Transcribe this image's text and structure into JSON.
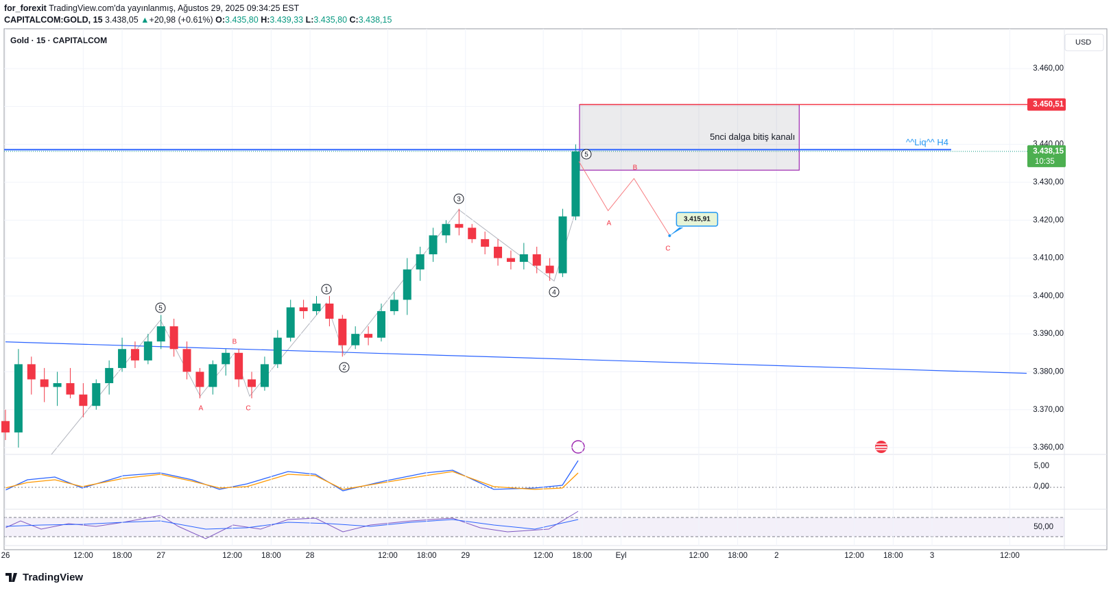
{
  "header": {
    "author": "for_forexit",
    "published": "TradingView.com'da yayınlanmış, Ağustos 29, 2025 09:34:25 EST",
    "symbol": "CAPITALCOM:GOLD, 15",
    "price": "3.438,05",
    "arrow": "▲",
    "change": "+20,98 (+0.61%)",
    "o_key": "O:",
    "o": "3.435,80",
    "h_key": "H:",
    "h": "3.439,33",
    "l_key": "L:",
    "l": "3.435,80",
    "c_key": "C:",
    "c": "3.438,15"
  },
  "legend": "Gold · 15 · CAPITALCOM",
  "currency": "USD",
  "footer": "TradingView",
  "indicators": {
    "macd_ticks": [
      "5,00",
      "0,00"
    ],
    "rsi_tick": "50,00"
  },
  "chart_data": {
    "type": "candlestick",
    "up_color": "#089981",
    "down_color": "#f23645",
    "xlim": [
      0,
      157.6
    ],
    "ylim": [
      3358.2,
      3470.5
    ],
    "xticks": [
      {
        "value": 0,
        "label": "26"
      },
      {
        "value": 12,
        "label": "12:00"
      },
      {
        "value": 18,
        "label": "18:00"
      },
      {
        "value": 24,
        "label": "27"
      },
      {
        "value": 35,
        "label": "12:00"
      },
      {
        "value": 41,
        "label": "18:00"
      },
      {
        "value": 47,
        "label": "28"
      },
      {
        "value": 59,
        "label": "12:00"
      },
      {
        "value": 65,
        "label": "18:00"
      },
      {
        "value": 71,
        "label": "29"
      },
      {
        "value": 83,
        "label": "12:00"
      },
      {
        "value": 89,
        "label": "18:00"
      },
      {
        "value": 95,
        "label": "Eyl"
      },
      {
        "value": 107,
        "label": "12:00"
      },
      {
        "value": 113,
        "label": "18:00"
      },
      {
        "value": 119,
        "label": "2"
      },
      {
        "value": 131,
        "label": "12:00"
      },
      {
        "value": 137,
        "label": "18:00"
      },
      {
        "value": 143,
        "label": "3"
      },
      {
        "value": 155,
        "label": "12:00"
      }
    ],
    "yticks": [
      {
        "value": 3360,
        "label": "3.360,00"
      },
      {
        "value": 3370,
        "label": "3.370,00"
      },
      {
        "value": 3380,
        "label": "3.380,00"
      },
      {
        "value": 3390,
        "label": "3.390,00"
      },
      {
        "value": 3400,
        "label": "3.400,00"
      },
      {
        "value": 3410,
        "label": "3.410,00"
      },
      {
        "value": 3420,
        "label": "3.420,00"
      },
      {
        "value": 3430,
        "label": "3.430,00"
      },
      {
        "value": 3440,
        "label": "3.440,00"
      },
      {
        "value": 3450,
        "label": "3.450,00"
      },
      {
        "value": 3460,
        "label": "3.460,00"
      }
    ],
    "candles": [
      {
        "x": 0,
        "open": 3367,
        "high": 3370,
        "low": 3362,
        "close": 3364
      },
      {
        "x": 2,
        "open": 3364,
        "high": 3386,
        "low": 3360,
        "close": 3382
      },
      {
        "x": 4,
        "open": 3382,
        "high": 3384,
        "low": 3374,
        "close": 3378
      },
      {
        "x": 6,
        "open": 3378,
        "high": 3381,
        "low": 3372,
        "close": 3376
      },
      {
        "x": 8,
        "open": 3376,
        "high": 3380,
        "low": 3371,
        "close": 3377
      },
      {
        "x": 10,
        "open": 3377,
        "high": 3381,
        "low": 3373,
        "close": 3374
      },
      {
        "x": 12,
        "open": 3374,
        "high": 3377,
        "low": 3368,
        "close": 3371
      },
      {
        "x": 14,
        "open": 3371,
        "high": 3378,
        "low": 3370,
        "close": 3377
      },
      {
        "x": 16,
        "open": 3377,
        "high": 3383,
        "low": 3374,
        "close": 3381
      },
      {
        "x": 18,
        "open": 3381,
        "high": 3389,
        "low": 3380,
        "close": 3386
      },
      {
        "x": 20,
        "open": 3386,
        "high": 3388,
        "low": 3381,
        "close": 3383
      },
      {
        "x": 22,
        "open": 3383,
        "high": 3390,
        "low": 3382,
        "close": 3388
      },
      {
        "x": 24,
        "open": 3388,
        "high": 3395,
        "low": 3386,
        "close": 3392
      },
      {
        "x": 26,
        "open": 3392,
        "high": 3394,
        "low": 3384,
        "close": 3386
      },
      {
        "x": 28,
        "open": 3386,
        "high": 3388,
        "low": 3378,
        "close": 3380
      },
      {
        "x": 30,
        "open": 3380,
        "high": 3381,
        "low": 3373,
        "close": 3376
      },
      {
        "x": 32,
        "open": 3376,
        "high": 3383,
        "low": 3374,
        "close": 3382
      },
      {
        "x": 34,
        "open": 3382,
        "high": 3386,
        "low": 3379,
        "close": 3385
      },
      {
        "x": 36,
        "open": 3385,
        "high": 3386,
        "low": 3376,
        "close": 3378
      },
      {
        "x": 38,
        "open": 3378,
        "high": 3380,
        "low": 3373,
        "close": 3376
      },
      {
        "x": 40,
        "open": 3376,
        "high": 3384,
        "low": 3375,
        "close": 3382
      },
      {
        "x": 42,
        "open": 3382,
        "high": 3391,
        "low": 3381,
        "close": 3389
      },
      {
        "x": 44,
        "open": 3389,
        "high": 3399,
        "low": 3388,
        "close": 3397
      },
      {
        "x": 46,
        "open": 3397,
        "high": 3399,
        "low": 3394,
        "close": 3396
      },
      {
        "x": 48,
        "open": 3396,
        "high": 3400,
        "low": 3395,
        "close": 3398
      },
      {
        "x": 50,
        "open": 3398,
        "high": 3400,
        "low": 3392,
        "close": 3394
      },
      {
        "x": 52,
        "open": 3394,
        "high": 3395,
        "low": 3384,
        "close": 3387
      },
      {
        "x": 54,
        "open": 3387,
        "high": 3392,
        "low": 3386,
        "close": 3390
      },
      {
        "x": 56,
        "open": 3390,
        "high": 3392,
        "low": 3387,
        "close": 3389
      },
      {
        "x": 58,
        "open": 3389,
        "high": 3398,
        "low": 3388,
        "close": 3396
      },
      {
        "x": 60,
        "open": 3396,
        "high": 3401,
        "low": 3395,
        "close": 3399
      },
      {
        "x": 62,
        "open": 3399,
        "high": 3410,
        "low": 3395,
        "close": 3407
      },
      {
        "x": 64,
        "open": 3407,
        "high": 3413,
        "low": 3404,
        "close": 3411
      },
      {
        "x": 66,
        "open": 3411,
        "high": 3418,
        "low": 3409,
        "close": 3416
      },
      {
        "x": 68,
        "open": 3416,
        "high": 3420,
        "low": 3414,
        "close": 3419
      },
      {
        "x": 70,
        "open": 3419,
        "high": 3423,
        "low": 3416,
        "close": 3418
      },
      {
        "x": 72,
        "open": 3418,
        "high": 3419,
        "low": 3414,
        "close": 3415
      },
      {
        "x": 74,
        "open": 3415,
        "high": 3417,
        "low": 3411,
        "close": 3413
      },
      {
        "x": 76,
        "open": 3413,
        "high": 3415,
        "low": 3408,
        "close": 3410
      },
      {
        "x": 78,
        "open": 3410,
        "high": 3412,
        "low": 3407,
        "close": 3409
      },
      {
        "x": 80,
        "open": 3409,
        "high": 3414,
        "low": 3407,
        "close": 3411
      },
      {
        "x": 82,
        "open": 3411,
        "high": 3413,
        "low": 3406,
        "close": 3408
      },
      {
        "x": 84,
        "open": 3408,
        "high": 3410,
        "low": 3404,
        "close": 3406
      },
      {
        "x": 86,
        "open": 3406,
        "high": 3423,
        "low": 3405,
        "close": 3421
      },
      {
        "x": 88,
        "open": 3421,
        "high": 3440,
        "low": 3420,
        "close": 3438.15
      }
    ],
    "box": {
      "label": "5nci dalga bitiş kanalı",
      "x0": 88.6,
      "x1": 122.5,
      "top": 3450.51,
      "top_label": "3.450,51",
      "bottom": 3433.2
    },
    "liquidity_line": {
      "label": "^^Liq^^ H4",
      "value": 3438.6
    },
    "last_price": {
      "value": 3438.15,
      "label": "3.438,15",
      "countdown": "10:35"
    },
    "trendline": {
      "x": [
        0,
        157.6
      ],
      "y": [
        3387.9,
        3379.6
      ]
    },
    "projection": {
      "x": [
        88.5,
        93,
        97,
        102.5
      ],
      "y": [
        3435.5,
        3422.5,
        3431,
        3416
      ]
    },
    "target": {
      "value": 3415.91,
      "label": "3.415,91"
    },
    "wave_labels": [
      "5",
      "A",
      "B",
      "C",
      "1",
      "2",
      "3",
      "4",
      "5",
      "B",
      "A",
      "C"
    ]
  }
}
